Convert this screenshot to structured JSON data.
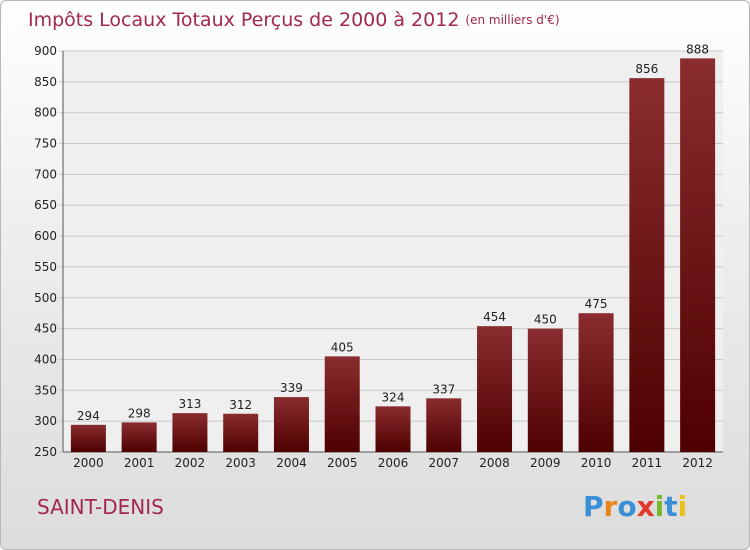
{
  "header": {
    "title": "Impôts Locaux Totaux Perçus de 2000 à 2012",
    "unit": "(en milliers d'€)"
  },
  "footer": {
    "commune": "SAINT-DENIS",
    "logo": "Proxiti"
  },
  "colors": {
    "title": "#a3284d",
    "bar_top": "#8a2c30",
    "bar_bottom": "#4e0000",
    "logo_letters": [
      "#3a8fd6",
      "#e8841a",
      "#3a8fd6",
      "#e23a2a",
      "#76b82a",
      "#3a8fd6",
      "#e8c21a"
    ]
  },
  "chart_data": {
    "type": "bar",
    "categories": [
      "2000",
      "2001",
      "2002",
      "2003",
      "2004",
      "2005",
      "2006",
      "2007",
      "2008",
      "2009",
      "2010",
      "2011",
      "2012"
    ],
    "values": [
      294,
      298,
      313,
      312,
      339,
      405,
      324,
      337,
      454,
      450,
      475,
      856,
      888
    ],
    "ylim": [
      250,
      900
    ],
    "yticks": [
      250,
      300,
      350,
      400,
      450,
      500,
      550,
      600,
      650,
      700,
      750,
      800,
      850,
      900
    ],
    "grid": true,
    "legend": "none"
  }
}
